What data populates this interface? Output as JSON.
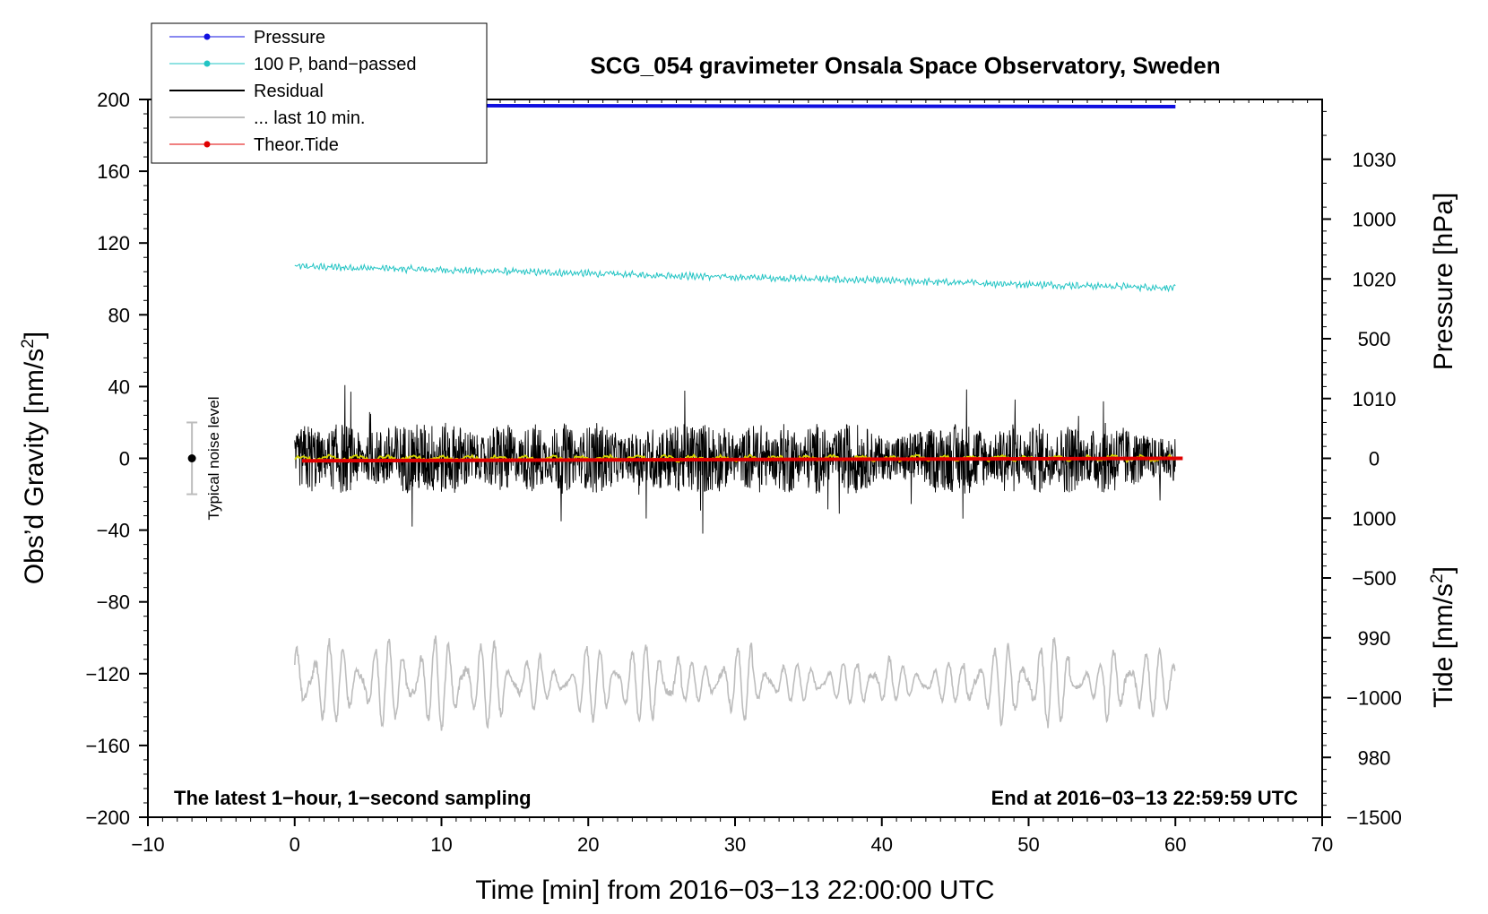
{
  "chart_data": {
    "type": "line",
    "title": "SCG_054 gravimeter Onsala Space Observatory, Sweden",
    "xlabel": "Time [min] from 2016−03−13 22:00:00 UTC",
    "ylabel_main": "Obs’d Gravity [nm/s",
    "ylabel_main_sup": "2",
    "ylabel_main_end": "]",
    "ylabel_pressure": "Pressure [hPa]",
    "ylabel_tide": "Tide [nm/s",
    "ylabel_tide_sup": "2",
    "ylabel_tide_end": "]",
    "xlim": [
      -10,
      70
    ],
    "ylim": [
      -200,
      200
    ],
    "pressure_ylim": [
      975,
      1035
    ],
    "tide_ylim": [
      -1500,
      1500
    ],
    "x_ticks": [
      "−10",
      "0",
      "10",
      "20",
      "30",
      "40",
      "50",
      "60",
      "70"
    ],
    "x_tick_values": [
      -10,
      0,
      10,
      20,
      30,
      40,
      50,
      60,
      70
    ],
    "y_ticks": [
      "200",
      "160",
      "120",
      "80",
      "40",
      "0",
      "−40",
      "−80",
      "−120",
      "−160",
      "−200"
    ],
    "y_tick_values": [
      200,
      160,
      120,
      80,
      40,
      0,
      -40,
      -80,
      -120,
      -160,
      -200
    ],
    "pressure_ticks": [
      "1030",
      "1020",
      "1010",
      "1000",
      "990",
      "980"
    ],
    "pressure_tick_values": [
      1030,
      1020,
      1010,
      1000,
      990,
      980
    ],
    "tide_ticks": [
      "1000",
      "500",
      "0",
      "−500",
      "−1000",
      "−1500"
    ],
    "tide_tick_values": [
      1000,
      500,
      0,
      -500,
      -1000,
      -1500
    ],
    "footer_left": "The latest 1−hour, 1−second sampling",
    "footer_right": "End at 2016−03−13 22:59:59 UTC",
    "noise_label": "Typical noise level",
    "noise_bar": {
      "x": -7,
      "center": 0,
      "half_range": 20
    },
    "legend": [
      {
        "label": "Pressure",
        "color": "#1010e0",
        "marker": true
      },
      {
        "label": "100 P, band−passed",
        "color": "#22c4c4",
        "marker": true
      },
      {
        "label": "Residual",
        "color": "#000000",
        "marker": false
      },
      {
        "label": "... last 10 min.",
        "color": "#bdbdbd",
        "marker": false
      },
      {
        "label": "Theor.Tide",
        "color": "#e00000",
        "marker": true
      }
    ],
    "series": [
      {
        "name": "Pressure",
        "axis": "pressure",
        "color": "#1010e0",
        "x_range": [
          0,
          60
        ],
        "values_start": 1034.5,
        "values_end": 1034.4
      },
      {
        "name": "100 P, band-passed",
        "axis": "gravity",
        "color": "#22c4c4",
        "x_range": [
          0,
          60
        ],
        "trend_start": 107,
        "trend_end": 95,
        "noise_amplitude": 2
      },
      {
        "name": "Residual",
        "axis": "gravity",
        "color": "#000000",
        "x_range": [
          0,
          60
        ],
        "center": 0,
        "typical_amplitude": 20,
        "max_abs": 50
      },
      {
        "name": "Residual smoothed",
        "axis": "gravity",
        "color": "#d4d400",
        "x_range": [
          0,
          60
        ],
        "center": 0,
        "amplitude": 2
      },
      {
        "name": "... last 10 min.",
        "axis": "gravity",
        "color": "#bdbdbd",
        "x_range": [
          0,
          60
        ],
        "center": -125,
        "amplitude": 20,
        "max_abs": 42
      },
      {
        "name": "Theor.Tide",
        "axis": "tide",
        "color": "#e00000",
        "x_range": [
          0.5,
          60.5
        ],
        "values_start": -10,
        "values_end": 0
      }
    ]
  }
}
